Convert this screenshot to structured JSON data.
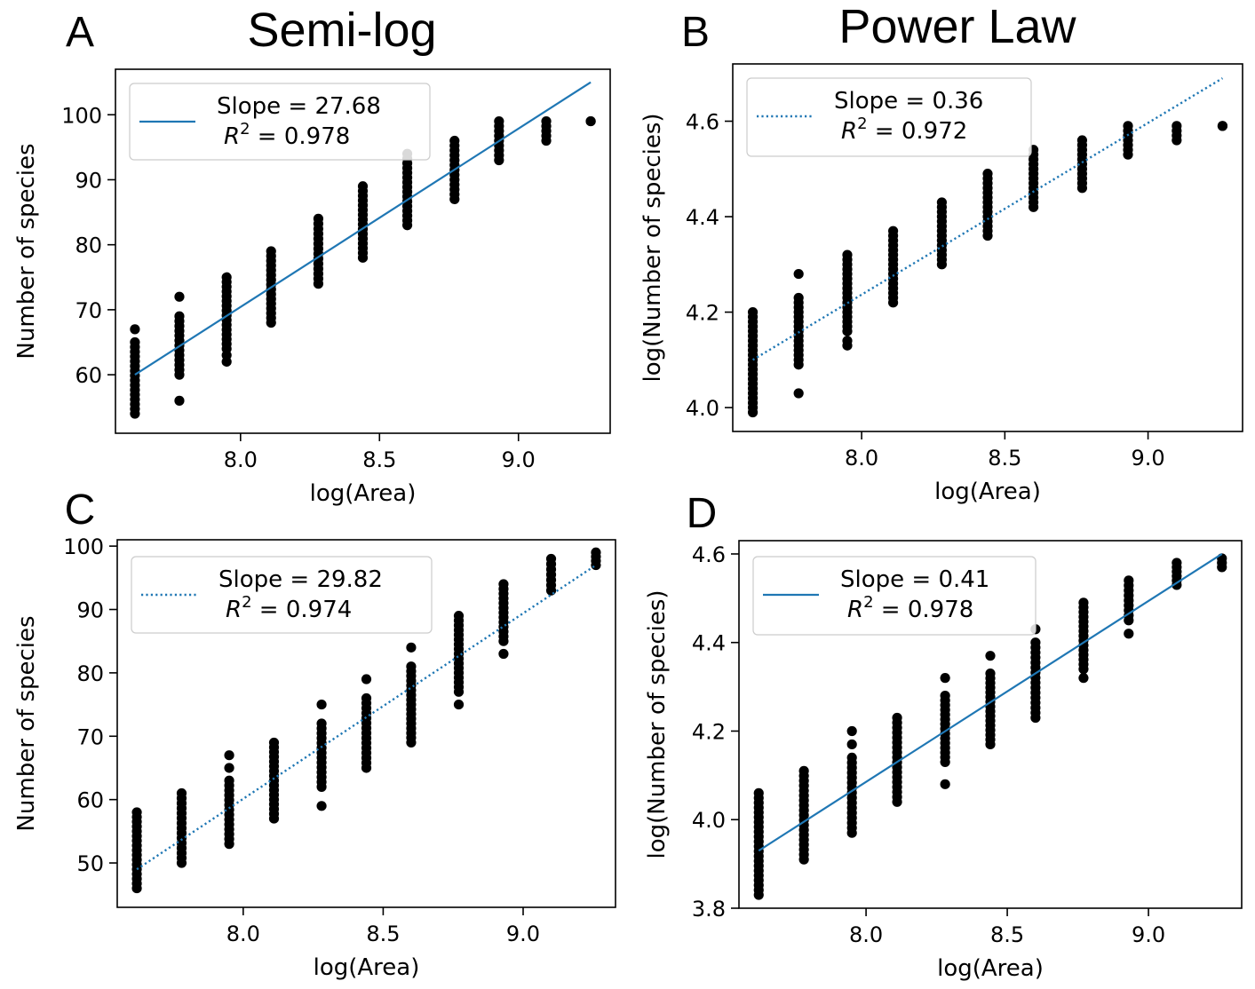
{
  "figure": {
    "column_titles": [
      "Semi-log",
      "Power Law"
    ]
  },
  "chart_data": [
    {
      "type": "scatter",
      "panel_label": "A",
      "xlabel": "log(Area)",
      "ylabel": "Number of species",
      "xlim": [
        7.55,
        9.33
      ],
      "ylim": [
        51,
        107
      ],
      "xticks": [
        8.0,
        8.5,
        9.0
      ],
      "xtick_labels": [
        "8.0",
        "8.5",
        "9.0"
      ],
      "yticks": [
        60,
        70,
        80,
        90,
        100
      ],
      "ytick_labels": [
        "60",
        "70",
        "80",
        "90",
        "100"
      ],
      "fit": {
        "style": "solid",
        "color": "#1f77b4",
        "x": [
          7.62,
          9.26
        ],
        "y": [
          60,
          105
        ]
      },
      "legend": {
        "location": "upper-left",
        "line1": "Slope = 27.68",
        "r2_value": "0.978"
      },
      "scatter": {
        "color": "#000000",
        "columns": [
          {
            "x": 7.62,
            "y_min": 54,
            "y_max": 65,
            "extra": [
              67
            ]
          },
          {
            "x": 7.78,
            "y_min": 60,
            "y_max": 69,
            "extra": [
              56,
              72
            ]
          },
          {
            "x": 7.95,
            "y_min": 64,
            "y_max": 75,
            "extra": [
              62,
              63
            ]
          },
          {
            "x": 8.11,
            "y_min": 68,
            "y_max": 79,
            "extra": []
          },
          {
            "x": 8.28,
            "y_min": 74,
            "y_max": 84,
            "extra": []
          },
          {
            "x": 8.44,
            "y_min": 78,
            "y_max": 89,
            "extra": []
          },
          {
            "x": 8.6,
            "y_min": 83,
            "y_max": 94,
            "extra": []
          },
          {
            "x": 8.77,
            "y_min": 87,
            "y_max": 96,
            "extra": []
          },
          {
            "x": 8.93,
            "y_min": 93,
            "y_max": 99,
            "extra": []
          },
          {
            "x": 9.1,
            "y_min": 96,
            "y_max": 99,
            "extra": []
          },
          {
            "x": 9.26,
            "y_min": 99,
            "y_max": 99,
            "extra": []
          }
        ]
      }
    },
    {
      "type": "scatter",
      "panel_label": "B",
      "xlabel": "log(Area)",
      "ylabel": "log(Number of species)",
      "xlim": [
        7.55,
        9.33
      ],
      "ylim": [
        3.95,
        4.72
      ],
      "xticks": [
        8.0,
        8.5,
        9.0
      ],
      "xtick_labels": [
        "8.0",
        "8.5",
        "9.0"
      ],
      "yticks": [
        4.0,
        4.2,
        4.4,
        4.6
      ],
      "ytick_labels": [
        "4.0",
        "4.2",
        "4.4",
        "4.6"
      ],
      "fit": {
        "style": "dotted",
        "color": "#1f77b4",
        "x": [
          7.62,
          9.26
        ],
        "y": [
          4.1,
          4.69
        ]
      },
      "legend": {
        "location": "upper-left",
        "line1": "Slope = 0.36",
        "r2_value": "0.972"
      },
      "scatter": {
        "color": "#000000",
        "columns": [
          {
            "x": 7.62,
            "y_min": 3.99,
            "y_max": 4.2,
            "extra": []
          },
          {
            "x": 7.78,
            "y_min": 4.09,
            "y_max": 4.23,
            "extra": [
              4.03,
              4.28
            ]
          },
          {
            "x": 7.95,
            "y_min": 4.16,
            "y_max": 4.32,
            "extra": [
              4.13,
              4.14
            ]
          },
          {
            "x": 8.11,
            "y_min": 4.22,
            "y_max": 4.37,
            "extra": []
          },
          {
            "x": 8.28,
            "y_min": 4.3,
            "y_max": 4.43,
            "extra": []
          },
          {
            "x": 8.44,
            "y_min": 4.36,
            "y_max": 4.49,
            "extra": []
          },
          {
            "x": 8.6,
            "y_min": 4.42,
            "y_max": 4.54,
            "extra": []
          },
          {
            "x": 8.77,
            "y_min": 4.46,
            "y_max": 4.56,
            "extra": []
          },
          {
            "x": 8.93,
            "y_min": 4.53,
            "y_max": 4.59,
            "extra": []
          },
          {
            "x": 9.1,
            "y_min": 4.56,
            "y_max": 4.59,
            "extra": []
          },
          {
            "x": 9.26,
            "y_min": 4.59,
            "y_max": 4.59,
            "extra": []
          }
        ]
      }
    },
    {
      "type": "scatter",
      "panel_label": "C",
      "xlabel": "log(Area)",
      "ylabel": "Number of species",
      "xlim": [
        7.55,
        9.33
      ],
      "ylim": [
        43,
        101
      ],
      "xticks": [
        8.0,
        8.5,
        9.0
      ],
      "xtick_labels": [
        "8.0",
        "8.5",
        "9.0"
      ],
      "yticks": [
        50,
        60,
        70,
        80,
        90,
        100
      ],
      "ytick_labels": [
        "50",
        "60",
        "70",
        "80",
        "90",
        "100"
      ],
      "fit": {
        "style": "dotted",
        "color": "#1f77b4",
        "x": [
          7.62,
          9.26
        ],
        "y": [
          49,
          97
        ]
      },
      "legend": {
        "location": "upper-left",
        "line1": "Slope = 29.82",
        "r2_value": "0.974"
      },
      "scatter": {
        "color": "#000000",
        "columns": [
          {
            "x": 7.62,
            "y_min": 46,
            "y_max": 58,
            "extra": []
          },
          {
            "x": 7.78,
            "y_min": 50,
            "y_max": 61,
            "extra": []
          },
          {
            "x": 7.95,
            "y_min": 53,
            "y_max": 63,
            "extra": [
              65,
              67
            ]
          },
          {
            "x": 8.11,
            "y_min": 57,
            "y_max": 69,
            "extra": []
          },
          {
            "x": 8.28,
            "y_min": 62,
            "y_max": 72,
            "extra": [
              59,
              75
            ]
          },
          {
            "x": 8.44,
            "y_min": 65,
            "y_max": 76,
            "extra": [
              79
            ]
          },
          {
            "x": 8.6,
            "y_min": 69,
            "y_max": 81,
            "extra": [
              84
            ]
          },
          {
            "x": 8.77,
            "y_min": 77,
            "y_max": 89,
            "extra": [
              75
            ]
          },
          {
            "x": 8.93,
            "y_min": 85,
            "y_max": 94,
            "extra": [
              83
            ]
          },
          {
            "x": 9.1,
            "y_min": 93,
            "y_max": 98,
            "extra": []
          },
          {
            "x": 9.26,
            "y_min": 97,
            "y_max": 99,
            "extra": []
          }
        ]
      }
    },
    {
      "type": "scatter",
      "panel_label": "D",
      "xlabel": "log(Area)",
      "ylabel": "log(Number of species)",
      "xlim": [
        7.55,
        9.33
      ],
      "ylim": [
        3.8,
        4.63
      ],
      "xticks": [
        8.0,
        8.5,
        9.0
      ],
      "xtick_labels": [
        "8.0",
        "8.5",
        "9.0"
      ],
      "yticks": [
        3.8,
        4.0,
        4.2,
        4.4,
        4.6
      ],
      "ytick_labels": [
        "3.8",
        "4.0",
        "4.2",
        "4.4",
        "4.6"
      ],
      "fit": {
        "style": "solid",
        "color": "#1f77b4",
        "x": [
          7.62,
          9.26
        ],
        "y": [
          3.93,
          4.6
        ]
      },
      "legend": {
        "location": "upper-left",
        "line1": "Slope = 0.41",
        "r2_value": "0.978"
      },
      "scatter": {
        "color": "#000000",
        "columns": [
          {
            "x": 7.62,
            "y_min": 3.83,
            "y_max": 4.06,
            "extra": []
          },
          {
            "x": 7.78,
            "y_min": 3.91,
            "y_max": 4.11,
            "extra": []
          },
          {
            "x": 7.95,
            "y_min": 3.97,
            "y_max": 4.14,
            "extra": [
              4.17,
              4.2
            ]
          },
          {
            "x": 8.11,
            "y_min": 4.04,
            "y_max": 4.23,
            "extra": []
          },
          {
            "x": 8.28,
            "y_min": 4.13,
            "y_max": 4.28,
            "extra": [
              4.08,
              4.32
            ]
          },
          {
            "x": 8.44,
            "y_min": 4.17,
            "y_max": 4.33,
            "extra": [
              4.37
            ]
          },
          {
            "x": 8.6,
            "y_min": 4.23,
            "y_max": 4.4,
            "extra": [
              4.43
            ]
          },
          {
            "x": 8.77,
            "y_min": 4.34,
            "y_max": 4.49,
            "extra": [
              4.32
            ]
          },
          {
            "x": 8.93,
            "y_min": 4.45,
            "y_max": 4.54,
            "extra": [
              4.42
            ]
          },
          {
            "x": 9.1,
            "y_min": 4.53,
            "y_max": 4.58,
            "extra": []
          },
          {
            "x": 9.26,
            "y_min": 4.57,
            "y_max": 4.59,
            "extra": []
          }
        ]
      }
    }
  ]
}
